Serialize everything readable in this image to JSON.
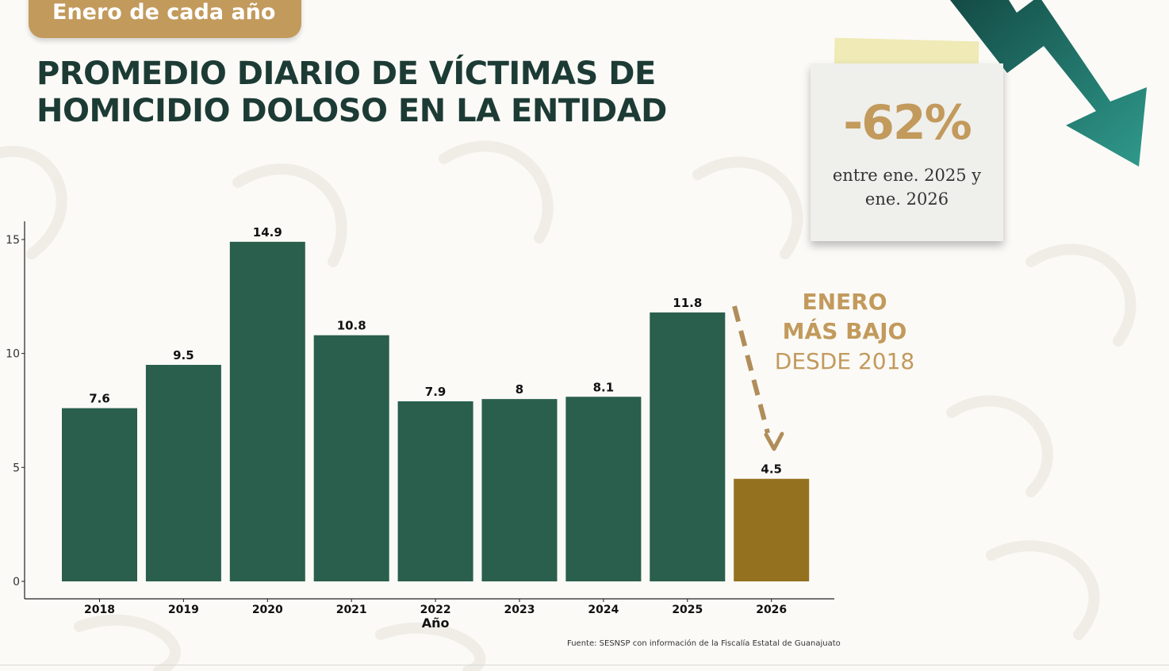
{
  "header": {
    "tag_label": "Enero de cada año",
    "title_lines": [
      "PROMEDIO DIARIO DE VÍCTIMAS DE",
      "HOMICIDIO DOLOSO EN LA ENTIDAD"
    ]
  },
  "note": {
    "percent": "-62%",
    "caption_lines": [
      "entre ene. 2025 y",
      "ene. 2026"
    ]
  },
  "callout": {
    "line1": "ENERO",
    "line2": "MÁS BAJO",
    "line3": "DESDE 2018"
  },
  "source": "Fuente: SESNSP con información de la Fiscalía Estatal de Guanajuato",
  "colors": {
    "bar": "#2a5e4d",
    "highlight_bar": "#93711f",
    "title": "#1d3b35",
    "accent_gold": "#c29a5c",
    "arrow_teal": "#1f6b63"
  },
  "chart_data": {
    "type": "bar",
    "categories": [
      "2018",
      "2019",
      "2020",
      "2021",
      "2022",
      "2023",
      "2024",
      "2025",
      "2026"
    ],
    "values": [
      7.6,
      9.5,
      14.9,
      10.8,
      7.9,
      8,
      8.1,
      11.8,
      4.5
    ],
    "data_labels": [
      "7.6",
      "9.5",
      "14.9",
      "10.8",
      "7.9",
      "8",
      "8.1",
      "11.8",
      "4.5"
    ],
    "highlight_category": "2026",
    "xlabel": "Año",
    "ylabel": "",
    "y_ticks": [
      0,
      5,
      10,
      15
    ],
    "ylim": [
      0,
      15.8
    ],
    "grid": false,
    "legend": "none"
  }
}
